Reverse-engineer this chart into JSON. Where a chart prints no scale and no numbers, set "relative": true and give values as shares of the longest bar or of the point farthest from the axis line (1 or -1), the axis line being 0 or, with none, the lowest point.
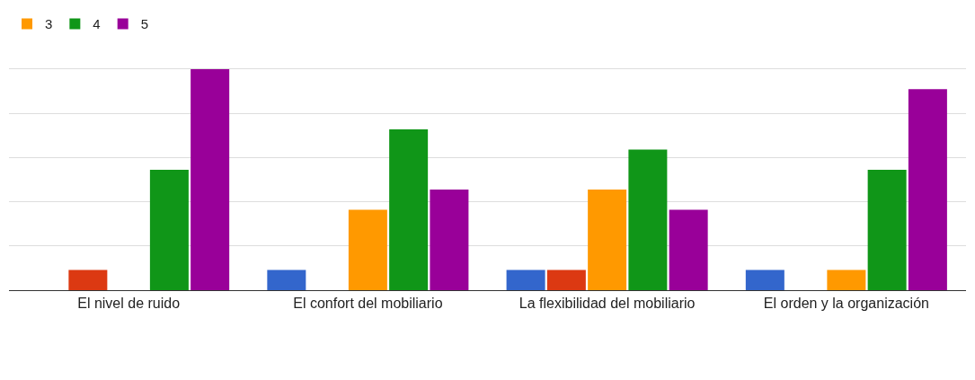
{
  "chart_data": {
    "type": "bar",
    "relative": true,
    "categories": [
      "El nivel de ruido",
      "El confort del mobiliario",
      "La flexibilidad del mobiliario",
      "El orden y la organización"
    ],
    "series": [
      {
        "color": "#3366cc",
        "values": [
          0,
          0.091,
          0.091,
          0.091
        ]
      },
      {
        "color": "#dc3912",
        "values": [
          0.091,
          0,
          0.091,
          0
        ]
      },
      {
        "name": "3",
        "color": "#ff9900",
        "values": [
          0,
          0.364,
          0.455,
          0.091
        ]
      },
      {
        "name": "4",
        "color": "#109618",
        "values": [
          0.545,
          0.727,
          0.636,
          0.545
        ]
      },
      {
        "name": "5",
        "color": "#990099",
        "values": [
          1,
          0.455,
          0.364,
          0.909
        ]
      }
    ],
    "grid": true,
    "legend": "top left"
  }
}
